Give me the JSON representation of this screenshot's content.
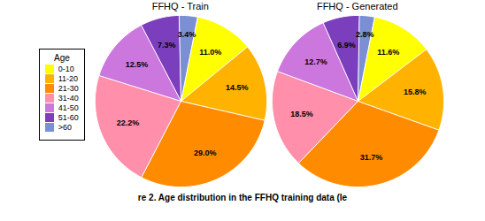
{
  "chart_data": [
    {
      "type": "pie",
      "title": "FFHQ - Train",
      "categories": [
        "0-10",
        "11-20",
        "21-30",
        "31-40",
        "41-50",
        "51-60",
        ">60"
      ],
      "values": [
        11.0,
        14.5,
        29.0,
        22.2,
        12.5,
        7.3,
        3.4
      ],
      "value_labels": [
        "11.0%",
        "14.5%",
        "29.0%",
        "22.2%",
        "12.5%",
        "7.3%",
        "3.4%"
      ],
      "colors": [
        "#FFFF00",
        "#FFB300",
        "#FF8C00",
        "#FF8FAB",
        "#CC77DD",
        "#7B3FBE",
        "#7B8FD4"
      ],
      "data_labels": true,
      "legend": "left",
      "legend_title": "Age",
      "caption": "re 2. Age distribution in the FFHQ training data (le"
    },
    {
      "type": "pie",
      "title": "FFHQ - Generated",
      "categories": [
        "0-10",
        "11-20",
        "21-30",
        "31-40",
        "41-50",
        "51-60",
        ">60"
      ],
      "values": [
        11.6,
        15.8,
        31.7,
        18.5,
        12.7,
        6.9,
        2.8
      ],
      "value_labels": [
        "11.6%",
        "15.8%",
        "31.7%",
        "18.5%",
        "12.7%",
        "6.9%",
        "2.8%"
      ],
      "colors": [
        "#FFFF00",
        "#FFB300",
        "#FF8C00",
        "#FF8FAB",
        "#CC77DD",
        "#7B3FBE",
        "#7B8FD4"
      ],
      "data_labels": true
    }
  ]
}
